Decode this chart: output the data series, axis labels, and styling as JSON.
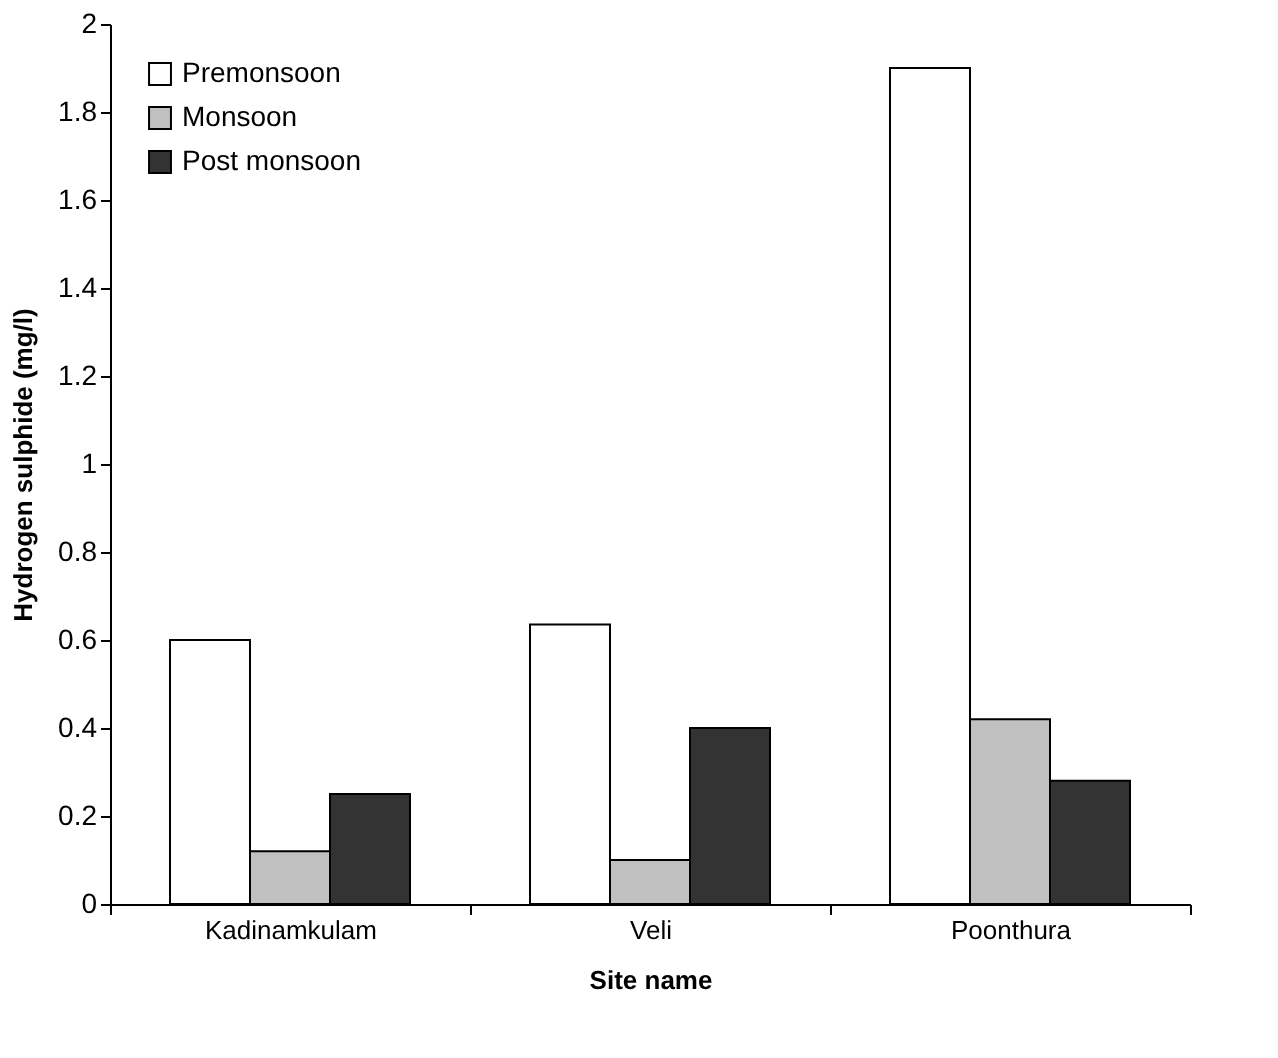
{
  "chart_data": {
    "type": "bar",
    "xlabel": "Site name",
    "ylabel": "Hydrogen sulphide (mg/l)",
    "categories": [
      "Kadinamkulam",
      "Veli",
      "Poonthura"
    ],
    "series": [
      {
        "name": "Premonsoon",
        "color": "#ffffff",
        "values": [
          0.6,
          0.635,
          1.9
        ]
      },
      {
        "name": "Monsoon",
        "color": "#c0c0c0",
        "values": [
          0.12,
          0.1,
          0.42
        ]
      },
      {
        "name": "Post monsoon",
        "color": "#333333",
        "values": [
          0.25,
          0.4,
          0.28
        ]
      }
    ],
    "ylim": [
      0,
      2
    ],
    "yticks": [
      0,
      0.2,
      0.4,
      0.6,
      0.8,
      1,
      1.2,
      1.4,
      1.6,
      1.8,
      2
    ],
    "grid": false,
    "legend": "top left"
  }
}
